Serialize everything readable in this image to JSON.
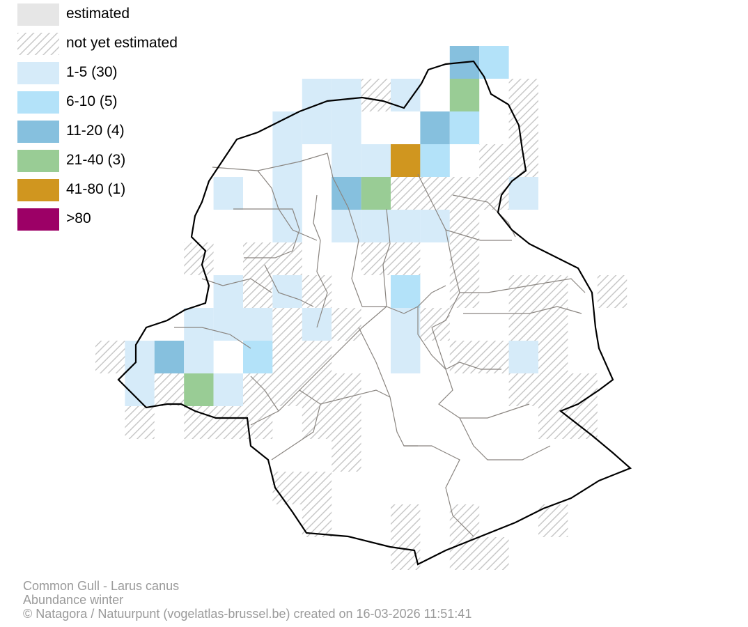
{
  "legend": {
    "items": [
      {
        "label": "estimated",
        "kind": "fill",
        "color": "#e6e6e6"
      },
      {
        "label": "not yet estimated",
        "kind": "hatch",
        "color": "#c8c8c8"
      },
      {
        "label": "1-5 (30)",
        "kind": "fill",
        "color": "#d6ebf9"
      },
      {
        "label": "6-10 (5)",
        "kind": "fill",
        "color": "#b3e2f9"
      },
      {
        "label": "11-20 (4)",
        "kind": "fill",
        "color": "#86c0de"
      },
      {
        "label": "21-40 (3)",
        "kind": "fill",
        "color": "#99cc95"
      },
      {
        "label": "41-80 (1)",
        "kind": "fill",
        "color": "#d0961f"
      },
      {
        "label": ">80",
        "kind": "fill",
        "color": "#9c0066"
      }
    ]
  },
  "credits": {
    "line1": "Common Gull - Larus canus",
    "line2": "Abundance winter",
    "line3": "© Natagora / Natuurpunt (vogelatlas-brussel.be) created on 16-03-2026 11:51:41"
  },
  "colors": {
    "outline": "#000000",
    "municipality_borders": "#8a8580"
  }
}
